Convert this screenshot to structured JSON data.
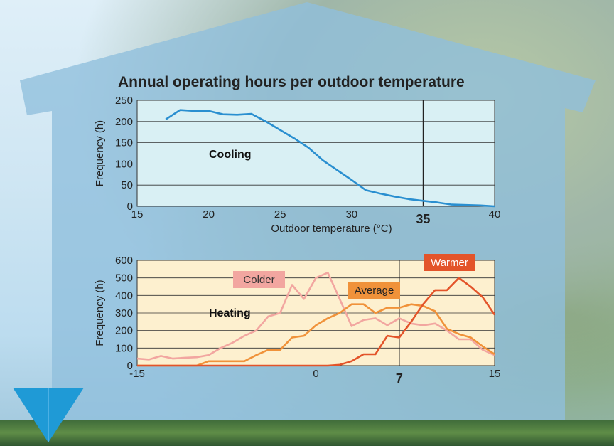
{
  "page_title": "Annual operating hours per outdoor temperature",
  "colors": {
    "cooling_line": "#2a8fd0",
    "cooling_bg": "#d9f0f4",
    "heating_bg": "#fdf0cf",
    "colder": "#f2a6a0",
    "average": "#f0923a",
    "warmer": "#e3542a",
    "house": "#8fbfdc"
  },
  "chart_data": [
    {
      "type": "line",
      "label": "Cooling",
      "xlabel": "Outdoor temperature (°C)",
      "ylabel": "Frequency (h)",
      "xlim": [
        15,
        40
      ],
      "ylim": [
        0,
        250
      ],
      "x_ticks": [
        "15",
        "20",
        "25",
        "30",
        "40"
      ],
      "y_ticks": [
        "250",
        "200",
        "150",
        "100",
        "50",
        "0"
      ],
      "marker": {
        "x": 35,
        "label": "35"
      },
      "series": [
        {
          "x": [
            17,
            18,
            19,
            20,
            21,
            22,
            23,
            24,
            25,
            26,
            27,
            28,
            29,
            30,
            31,
            32,
            33,
            34,
            35,
            36,
            37,
            38,
            39,
            40
          ],
          "values": [
            205,
            227,
            225,
            225,
            217,
            216,
            218,
            200,
            180,
            160,
            138,
            108,
            85,
            62,
            38,
            30,
            23,
            17,
            13,
            9,
            4,
            3,
            2,
            0
          ]
        }
      ],
      "grid": true
    },
    {
      "type": "line",
      "label": "Heating",
      "xlabel": "",
      "ylabel": "Frequency (h)",
      "xlim": [
        -15,
        15
      ],
      "ylim": [
        0,
        600
      ],
      "x_ticks": [
        "-15",
        "0",
        "15"
      ],
      "y_ticks": [
        "600",
        "500",
        "400",
        "300",
        "200",
        "100",
        "0"
      ],
      "marker": {
        "x": 7,
        "label": "7"
      },
      "series": [
        {
          "name": "Colder",
          "x": [
            -15,
            -14,
            -13,
            -12,
            -11,
            -10,
            -9,
            -8,
            -7,
            -6,
            -5,
            -4,
            -3,
            -2,
            -1,
            0,
            1,
            2,
            3,
            4,
            5,
            6,
            7,
            8,
            9,
            10,
            11,
            12,
            13,
            14,
            15
          ],
          "values": [
            40,
            35,
            55,
            40,
            45,
            48,
            60,
            100,
            130,
            170,
            200,
            280,
            300,
            460,
            380,
            500,
            530,
            380,
            225,
            260,
            270,
            230,
            270,
            240,
            230,
            240,
            200,
            150,
            150,
            90,
            60
          ]
        },
        {
          "name": "Average",
          "x": [
            -15,
            -14,
            -13,
            -12,
            -11,
            -10,
            -9,
            -8,
            -7,
            -6,
            -5,
            -4,
            -3,
            -2,
            -1,
            0,
            1,
            2,
            3,
            4,
            5,
            6,
            7,
            8,
            9,
            10,
            11,
            12,
            13,
            14,
            15
          ],
          "values": [
            0,
            0,
            0,
            0,
            0,
            0,
            25,
            25,
            25,
            25,
            60,
            90,
            90,
            160,
            170,
            230,
            270,
            300,
            350,
            350,
            300,
            330,
            330,
            350,
            340,
            310,
            210,
            180,
            160,
            110,
            65
          ]
        },
        {
          "name": "Warmer",
          "x": [
            -15,
            -14,
            -13,
            -12,
            -11,
            -10,
            -9,
            -8,
            -7,
            -6,
            -5,
            -4,
            -3,
            -2,
            -1,
            0,
            1,
            2,
            3,
            4,
            5,
            6,
            7,
            8,
            9,
            10,
            11,
            12,
            13,
            14,
            15
          ],
          "values": [
            0,
            0,
            0,
            0,
            0,
            0,
            0,
            0,
            0,
            0,
            0,
            0,
            0,
            0,
            0,
            0,
            0,
            5,
            25,
            65,
            65,
            170,
            160,
            250,
            350,
            430,
            430,
            500,
            450,
            390,
            290
          ]
        }
      ],
      "grid": true
    }
  ]
}
